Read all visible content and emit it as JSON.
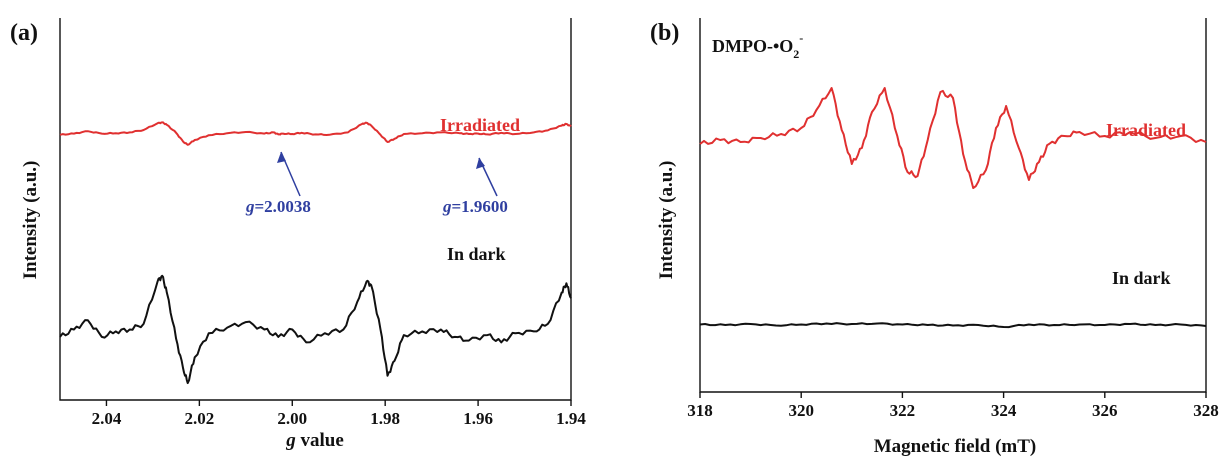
{
  "chart_data": [
    {
      "panel_label": "(a)",
      "type": "line",
      "xlabel_italic": "g",
      "xlabel_rest": " value",
      "ylabel": "Intensity (a.u.)",
      "xlim": [
        2.05,
        1.94
      ],
      "x_reversed": true,
      "xticks": [
        2.04,
        2.02,
        2.0,
        1.98,
        1.96,
        1.94
      ],
      "xtick_labels": [
        "2.04",
        "2.02",
        "2.00",
        "1.98",
        "1.96",
        "1.94"
      ],
      "ylim": [
        0,
        10
      ],
      "colors": {
        "irradiated": "#e03030",
        "dark": "#111111",
        "annotation": "#2f3fa0"
      },
      "series": [
        {
          "name": "Irradiated",
          "color": "#e03030",
          "x": [
            2.05,
            2.047,
            2.044,
            2.041,
            2.038,
            2.035,
            2.032,
            2.029,
            2.028,
            2.027,
            2.025,
            2.0235,
            2.0225,
            2.021,
            2.018,
            2.014,
            2.01,
            2.006,
            2.004,
            2.003,
            2.002,
            2.0,
            1.998,
            1.995,
            1.992,
            1.988,
            1.985,
            1.984,
            1.983,
            1.981,
            1.9795,
            1.978,
            1.976,
            1.972,
            1.968,
            1.964,
            1.962,
            1.96,
            1.958,
            1.955,
            1.952,
            1.948,
            1.945,
            1.942,
            1.941,
            1.94
          ],
          "y": [
            6.3,
            6.6,
            7.2,
            6.6,
            6.7,
            6.9,
            7.5,
            9.2,
            9.4,
            8.8,
            6.8,
            4.6,
            3.8,
            5.0,
            6.2,
            6.7,
            7.0,
            6.6,
            6.9,
            6.4,
            6.6,
            6.5,
            6.8,
            6.4,
            6.3,
            6.9,
            9.0,
            9.3,
            8.6,
            6.3,
            4.5,
            5.3,
            6.5,
            6.7,
            6.9,
            6.7,
            6.5,
            6.6,
            6.4,
            6.8,
            6.5,
            6.9,
            7.4,
            8.6,
            9.0,
            8.4
          ]
        },
        {
          "name": "In dark",
          "color": "#111111",
          "x": [
            2.05,
            2.047,
            2.044,
            2.041,
            2.038,
            2.035,
            2.032,
            2.029,
            2.028,
            2.027,
            2.025,
            2.0235,
            2.0225,
            2.021,
            2.018,
            2.014,
            2.01,
            2.006,
            2.003,
            2.0,
            1.997,
            1.993,
            1.989,
            1.986,
            1.984,
            1.983,
            1.981,
            1.9795,
            1.978,
            1.976,
            1.972,
            1.968,
            1.965,
            1.962,
            1.958,
            1.955,
            1.952,
            1.948,
            1.945,
            1.942,
            1.941,
            1.94
          ],
          "y": [
            2.6,
            3.0,
            3.5,
            2.6,
            2.9,
            3.0,
            3.3,
            5.6,
            5.9,
            5.0,
            2.5,
            0.9,
            0.1,
            1.5,
            2.8,
            3.1,
            3.4,
            3.0,
            2.6,
            3.0,
            2.3,
            2.8,
            3.0,
            4.5,
            5.6,
            5.4,
            3.0,
            0.5,
            1.3,
            2.7,
            2.9,
            3.0,
            2.6,
            2.4,
            2.7,
            2.3,
            2.8,
            2.9,
            3.3,
            5.0,
            5.5,
            4.7
          ]
        }
      ],
      "annotations": [
        {
          "text_italic": "g",
          "text_rest": "=2.0038",
          "x": 2.0038
        },
        {
          "text_italic": "g",
          "text_rest": "=1.9600",
          "x": 1.96
        }
      ]
    },
    {
      "panel_label": "(b)",
      "type": "line",
      "title_main": "DMPO-•O",
      "title_sub": "2",
      "title_sup": "-",
      "xlabel": "Magnetic field (mT)",
      "ylabel": "Intensity (a.u.)",
      "xlim": [
        318,
        328
      ],
      "xticks": [
        318,
        320,
        322,
        324,
        326,
        328
      ],
      "xtick_labels": [
        "318",
        "320",
        "322",
        "324",
        "326",
        "328"
      ],
      "ylim": [
        0,
        10
      ],
      "colors": {
        "irradiated": "#e03030",
        "dark": "#111111"
      },
      "series": [
        {
          "name": "Irradiated",
          "color": "#e03030",
          "x": [
            318,
            318.4,
            318.8,
            319.2,
            319.6,
            320.0,
            320.3,
            320.6,
            320.8,
            321.0,
            321.2,
            321.4,
            321.65,
            321.9,
            322.1,
            322.3,
            322.5,
            322.75,
            323.0,
            323.2,
            323.4,
            323.65,
            323.85,
            324.05,
            324.3,
            324.5,
            324.7,
            324.9,
            325.2,
            325.5,
            326.0,
            326.5,
            327.0,
            327.5,
            328.0
          ],
          "y": [
            5.8,
            6.0,
            5.9,
            6.1,
            6.3,
            6.6,
            7.5,
            8.6,
            6.5,
            4.8,
            5.6,
            7.4,
            8.6,
            6.2,
            4.4,
            4.2,
            6.0,
            8.4,
            8.1,
            5.3,
            3.6,
            4.5,
            6.6,
            7.7,
            5.6,
            4.0,
            4.9,
            5.8,
            6.2,
            6.4,
            6.2,
            6.4,
            6.1,
            6.2,
            5.9
          ]
        },
        {
          "name": "In dark",
          "color": "#111111",
          "x": [
            318,
            318.5,
            319.0,
            319.5,
            320.0,
            320.5,
            321.0,
            321.5,
            322.0,
            322.5,
            323.0,
            323.5,
            324.0,
            324.5,
            325.0,
            325.5,
            326.0,
            326.5,
            327.0,
            327.5,
            328.0
          ],
          "y": [
            2.1,
            2.0,
            2.2,
            1.9,
            2.1,
            2.3,
            2.2,
            2.3,
            2.1,
            2.0,
            1.9,
            2.0,
            1.6,
            2.1,
            2.0,
            2.1,
            2.0,
            2.2,
            2.0,
            2.1,
            1.8
          ]
        }
      ]
    }
  ]
}
